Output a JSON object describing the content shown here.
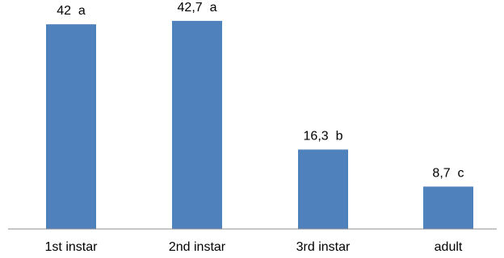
{
  "chart_data": {
    "type": "bar",
    "title": "",
    "xlabel": "",
    "ylabel": "",
    "categories": [
      "1st instar",
      "2nd instar",
      "3rd instar",
      "adult"
    ],
    "values": [
      42,
      42.7,
      16.3,
      8.7
    ],
    "data_labels": [
      "42  a",
      "42,7  a",
      "16,3  b",
      "8,7  c"
    ],
    "ylim": [
      0,
      45
    ],
    "grid": false,
    "legend": "none",
    "bar_color": "#4f81bd"
  }
}
